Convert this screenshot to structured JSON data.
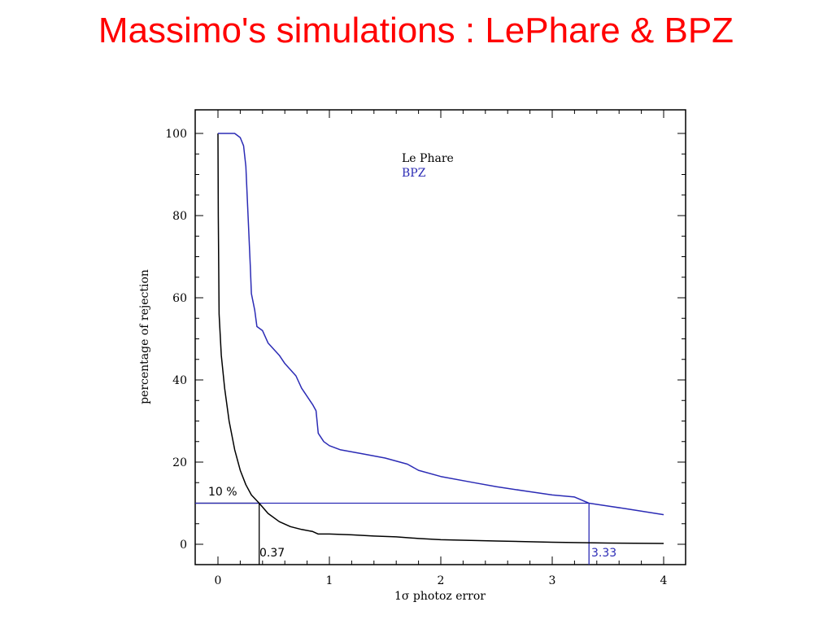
{
  "slide": {
    "title": "Massimo's simulations : LePhare & BPZ"
  },
  "colors": {
    "title": "#ff0000",
    "lephare": "#000000",
    "bpz": "#2b2bb5"
  },
  "chart_data": {
    "type": "line",
    "xlabel": "1σ photoz error",
    "ylabel": "percentage of rejection",
    "xlim": [
      -0.2,
      4.2
    ],
    "ylim": [
      -5,
      105
    ],
    "xticks": [
      0,
      1,
      2,
      3,
      4
    ],
    "yticks": [
      0,
      20,
      40,
      60,
      80,
      100
    ],
    "legend": {
      "placement": "top-center",
      "entries": [
        "Le Phare",
        "BPZ"
      ]
    },
    "grid": false,
    "series": [
      {
        "name": "Le Phare",
        "color": "#000000",
        "points": [
          [
            0.0,
            100
          ],
          [
            0.003,
            80
          ],
          [
            0.01,
            56
          ],
          [
            0.03,
            46
          ],
          [
            0.06,
            38
          ],
          [
            0.1,
            30
          ],
          [
            0.15,
            23
          ],
          [
            0.2,
            18
          ],
          [
            0.25,
            14.5
          ],
          [
            0.3,
            12
          ],
          [
            0.37,
            10
          ],
          [
            0.45,
            7.5
          ],
          [
            0.55,
            5.5
          ],
          [
            0.65,
            4.3
          ],
          [
            0.75,
            3.6
          ],
          [
            0.85,
            3.1
          ],
          [
            0.9,
            2.5
          ],
          [
            1.0,
            2.5
          ],
          [
            1.2,
            2.3
          ],
          [
            1.4,
            2.0
          ],
          [
            1.6,
            1.8
          ],
          [
            1.8,
            1.4
          ],
          [
            2.0,
            1.1
          ],
          [
            2.5,
            0.8
          ],
          [
            3.0,
            0.5
          ],
          [
            3.5,
            0.3
          ],
          [
            4.0,
            0.2
          ]
        ]
      },
      {
        "name": "BPZ",
        "color": "#2b2bb5",
        "points": [
          [
            0.0,
            100
          ],
          [
            0.15,
            100
          ],
          [
            0.2,
            99
          ],
          [
            0.23,
            97
          ],
          [
            0.25,
            92
          ],
          [
            0.27,
            80
          ],
          [
            0.29,
            68
          ],
          [
            0.3,
            61
          ],
          [
            0.33,
            57
          ],
          [
            0.35,
            53
          ],
          [
            0.4,
            52
          ],
          [
            0.45,
            49
          ],
          [
            0.55,
            46
          ],
          [
            0.6,
            44
          ],
          [
            0.7,
            41
          ],
          [
            0.75,
            38
          ],
          [
            0.8,
            36
          ],
          [
            0.85,
            34
          ],
          [
            0.88,
            32.5
          ],
          [
            0.9,
            27
          ],
          [
            0.95,
            25
          ],
          [
            1.0,
            24
          ],
          [
            1.1,
            23
          ],
          [
            1.3,
            22
          ],
          [
            1.5,
            21
          ],
          [
            1.7,
            19.5
          ],
          [
            1.8,
            18
          ],
          [
            2.0,
            16.5
          ],
          [
            2.3,
            15
          ],
          [
            2.5,
            14
          ],
          [
            2.8,
            12.8
          ],
          [
            3.0,
            12
          ],
          [
            3.2,
            11.5
          ],
          [
            3.33,
            10
          ],
          [
            3.5,
            9.3
          ],
          [
            3.7,
            8.5
          ],
          [
            4.0,
            7.2
          ]
        ]
      }
    ],
    "annotations": {
      "threshold_label": "10 %",
      "threshold_y": 10,
      "lephare_crossing_x": 0.37,
      "lephare_crossing_label": "0.37",
      "bpz_crossing_x": 3.33,
      "bpz_crossing_label": "3.33"
    }
  }
}
